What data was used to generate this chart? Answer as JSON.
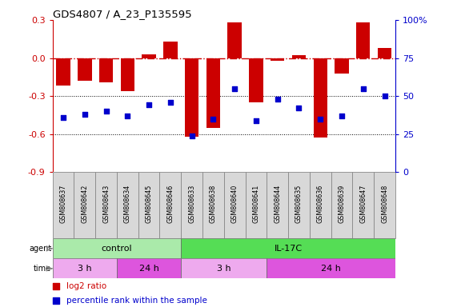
{
  "title": "GDS4807 / A_23_P135595",
  "samples": [
    "GSM808637",
    "GSM808642",
    "GSM808643",
    "GSM808634",
    "GSM808645",
    "GSM808646",
    "GSM808633",
    "GSM808638",
    "GSM808640",
    "GSM808641",
    "GSM808644",
    "GSM808635",
    "GSM808636",
    "GSM808639",
    "GSM808647",
    "GSM808648"
  ],
  "log2_ratio": [
    -0.22,
    -0.18,
    -0.19,
    -0.26,
    0.03,
    0.13,
    -0.62,
    -0.55,
    0.28,
    -0.35,
    -0.02,
    0.02,
    -0.63,
    -0.12,
    0.28,
    0.08
  ],
  "percentile": [
    36,
    38,
    40,
    37,
    44,
    46,
    24,
    35,
    55,
    34,
    48,
    42,
    35,
    37,
    55,
    50
  ],
  "ylim_left": [
    -0.9,
    0.3
  ],
  "ylim_right": [
    0,
    100
  ],
  "yticks_left": [
    -0.9,
    -0.6,
    -0.3,
    0.0,
    0.3
  ],
  "yticks_right": [
    0,
    25,
    50,
    75,
    100
  ],
  "ytick_labels_right": [
    "0",
    "25",
    "50",
    "75",
    "100%"
  ],
  "hlines": [
    -0.3,
    -0.6
  ],
  "bar_color": "#cc0000",
  "dot_color": "#0000cc",
  "dashed_color": "#cc0000",
  "bg_color": "#ffffff",
  "agent_groups": [
    {
      "label": "control",
      "start": 0,
      "end": 6,
      "color": "#aaeaaa"
    },
    {
      "label": "IL-17C",
      "start": 6,
      "end": 16,
      "color": "#55dd55"
    }
  ],
  "time_groups": [
    {
      "label": "3 h",
      "start": 0,
      "end": 3,
      "color": "#eeaaee"
    },
    {
      "label": "24 h",
      "start": 3,
      "end": 6,
      "color": "#dd55dd"
    },
    {
      "label": "3 h",
      "start": 6,
      "end": 10,
      "color": "#eeaaee"
    },
    {
      "label": "24 h",
      "start": 10,
      "end": 16,
      "color": "#dd55dd"
    }
  ],
  "legend_items": [
    {
      "label": "log2 ratio",
      "color": "#cc0000"
    },
    {
      "label": "percentile rank within the sample",
      "color": "#0000cc"
    }
  ],
  "cell_bg": "#d8d8d8",
  "cell_edge": "#888888"
}
